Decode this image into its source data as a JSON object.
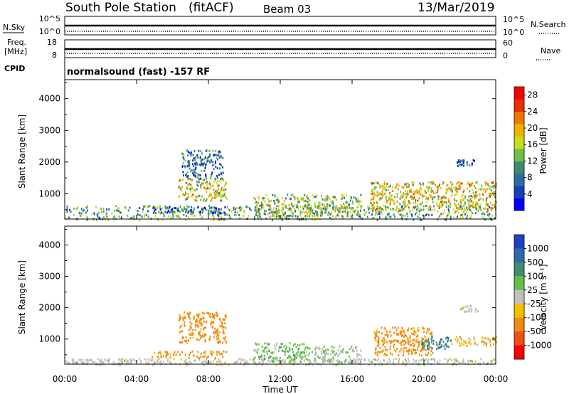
{
  "header": {
    "station": "South Pole Station",
    "fit": "(fitACF)",
    "beam": "Beam 03",
    "date": "13/Mar/2019"
  },
  "top_panels": {
    "nsky": {
      "label": "N.Sky",
      "left_top": "10^5",
      "left_bottom": "10^0",
      "right_top": "10^5",
      "right_bottom": "10^0",
      "right_label": "N.Search"
    },
    "freq": {
      "label_line1": "Freq.",
      "label_line2": "[MHz]",
      "left_top": "18",
      "left_bottom": "8",
      "right_top": "60",
      "right_bottom": "0",
      "right_label": "Nave"
    },
    "cpid": {
      "label": "CPID",
      "value": "normalsound (fast) -157 RF"
    }
  },
  "chart_data": [
    {
      "type": "heatmap",
      "name": "power",
      "ylabel": "Slant Range [km]",
      "yticks": [
        1000,
        2000,
        3000,
        4000
      ],
      "ylim": [
        200,
        4600
      ],
      "xlim": [
        0,
        24
      ],
      "colorbar": {
        "label": "Power [dB]",
        "ticks": [
          "4",
          "8",
          "12",
          "16",
          "20",
          "24",
          "28"
        ],
        "range": [
          0,
          30
        ]
      },
      "echo_regions": [
        {
          "t": [
            0.0,
            24.0
          ],
          "r": [
            200,
            650
          ],
          "value": 12
        },
        {
          "t": [
            4.8,
            9.0
          ],
          "r": [
            420,
            620
          ],
          "value": 6
        },
        {
          "t": [
            6.3,
            9.0
          ],
          "r": [
            800,
            1500
          ],
          "value": 16
        },
        {
          "t": [
            6.5,
            8.8
          ],
          "r": [
            1500,
            2400
          ],
          "value": 8
        },
        {
          "t": [
            10.5,
            16.5
          ],
          "r": [
            300,
            1000
          ],
          "value": 14
        },
        {
          "t": [
            17.0,
            24.0
          ],
          "r": [
            500,
            1400
          ],
          "value": 18
        },
        {
          "t": [
            21.8,
            22.8
          ],
          "r": [
            1900,
            2100
          ],
          "value": 7
        }
      ]
    },
    {
      "type": "heatmap",
      "name": "velocity",
      "ylabel": "Slant Range [km]",
      "yticks": [
        1000,
        2000,
        3000,
        4000
      ],
      "ylim": [
        200,
        4600
      ],
      "xlim": [
        0,
        24
      ],
      "colorbar": {
        "label": "Velocity [m s⁻¹]",
        "ticks": [
          "1000",
          "500",
          "100",
          "25",
          "-25",
          "-100",
          "-500",
          "-1000"
        ]
      },
      "echo_regions": [
        {
          "t": [
            0.0,
            24.0
          ],
          "r": [
            200,
            400
          ],
          "value": 0
        },
        {
          "t": [
            4.8,
            9.0
          ],
          "r": [
            420,
            650
          ],
          "value": -200
        },
        {
          "t": [
            6.3,
            9.0
          ],
          "r": [
            900,
            1900
          ],
          "value": -200
        },
        {
          "t": [
            10.5,
            13.5
          ],
          "r": [
            300,
            900
          ],
          "value": 50
        },
        {
          "t": [
            13.5,
            16.5
          ],
          "r": [
            300,
            800
          ],
          "value": 20
        },
        {
          "t": [
            17.2,
            20.5
          ],
          "r": [
            500,
            1400
          ],
          "value": -200
        },
        {
          "t": [
            19.8,
            21.5
          ],
          "r": [
            700,
            1100
          ],
          "value": 500
        },
        {
          "t": [
            21.5,
            24.0
          ],
          "r": [
            800,
            1100
          ],
          "value": -80
        },
        {
          "t": [
            22.0,
            23.0
          ],
          "r": [
            1900,
            2100
          ],
          "value": 0
        }
      ]
    }
  ],
  "xaxis": {
    "label": "Time UT",
    "ticks": [
      "00:00",
      "04:00",
      "08:00",
      "12:00",
      "16:00",
      "20:00",
      "00:00"
    ],
    "tick_hours": [
      0,
      4,
      8,
      12,
      16,
      20,
      24
    ]
  },
  "colors": {
    "power": [
      "#0000ff",
      "#1a3fb5",
      "#2b6ea0",
      "#3c8c70",
      "#6fbf4a",
      "#c8dc1e",
      "#f0b400",
      "#f07800",
      "#e83000",
      "#ff0000"
    ],
    "velocity": [
      "#2040c0",
      "#2e6aa8",
      "#3f8d6e",
      "#62c048",
      "#bfbfbf",
      "#f0c000",
      "#f08a10",
      "#f05010",
      "#ff0000"
    ]
  }
}
